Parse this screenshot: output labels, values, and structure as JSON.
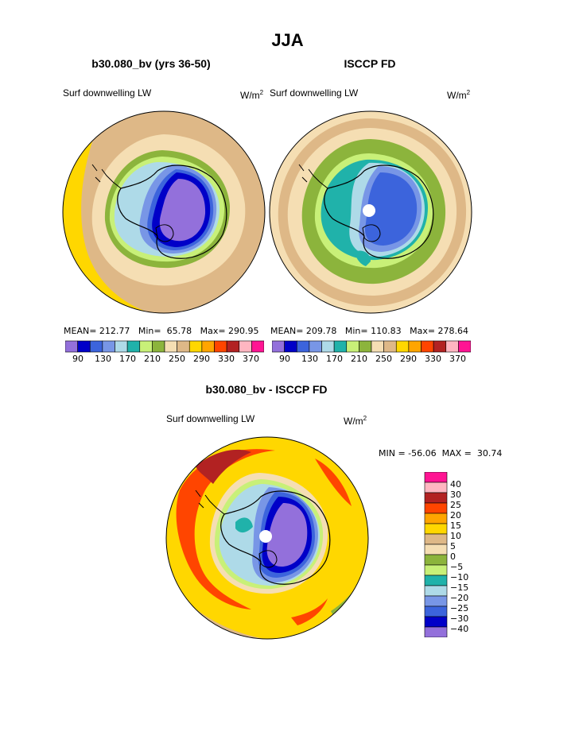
{
  "title": "JJA",
  "units_base": "W/m",
  "units_exp": "2",
  "colors": {
    "c90": "#9370DB",
    "c110": "#0000C8",
    "c130": "#3C64DC",
    "c150": "#7896E6",
    "c170": "#AEDAE8",
    "c190": "#20B2AA",
    "c210": "#C8F078",
    "c230": "#8CB43C",
    "c250": "#F5DEB3",
    "c270": "#DEB887",
    "c290": "#FFD700",
    "c310": "#FFA500",
    "c330": "#FF4500",
    "c350": "#B22222",
    "c370": "#FFB6C1",
    "c390": "#FF1493"
  },
  "chart_data": [
    {
      "type": "heatmap",
      "title": "b30.080_bv (yrs 36-50)",
      "variable": "Surf downwelling LW",
      "units": "W/m2",
      "projection": "south polar stereographic",
      "stats": {
        "mean": 212.77,
        "min": 65.78,
        "max": 290.95
      },
      "stats_text": "MEAN= 212.77   Min=  65.78   Max= 290.95",
      "colorbar_ticks": [
        "90",
        "130",
        "170",
        "210",
        "250",
        "290",
        "330",
        "370"
      ],
      "contour_levels": [
        90,
        110,
        130,
        150,
        170,
        190,
        210,
        230,
        250,
        270,
        290,
        310,
        330,
        350,
        370
      ]
    },
    {
      "type": "heatmap",
      "title": "ISCCP FD",
      "variable": "Surf downwelling LW",
      "units": "W/m2",
      "projection": "south polar stereographic",
      "stats": {
        "mean": 209.78,
        "min": 110.83,
        "max": 278.64
      },
      "stats_text": "MEAN= 209.78   Min= 110.83   Max= 278.64",
      "colorbar_ticks": [
        "90",
        "130",
        "170",
        "210",
        "250",
        "290",
        "330",
        "370"
      ],
      "contour_levels": [
        90,
        110,
        130,
        150,
        170,
        190,
        210,
        230,
        250,
        270,
        290,
        310,
        330,
        350,
        370
      ]
    },
    {
      "type": "heatmap",
      "title": "b30.080_bv - ISCCP FD",
      "variable": "Surf downwelling LW",
      "units": "W/m2",
      "projection": "south polar stereographic",
      "stats": {
        "min": -56.06,
        "max": 30.74
      },
      "stats_text": "MIN = -56.06  MAX =  30.74",
      "colorbar_ticks": [
        "40",
        "30",
        "25",
        "20",
        "15",
        "10",
        "5",
        "0",
        "−5",
        "−10",
        "−15",
        "−20",
        "−25",
        "−30",
        "−40"
      ],
      "contour_levels": [
        -40,
        -30,
        -25,
        -20,
        -15,
        -10,
        -5,
        0,
        5,
        10,
        15,
        20,
        25,
        30,
        40
      ]
    }
  ]
}
